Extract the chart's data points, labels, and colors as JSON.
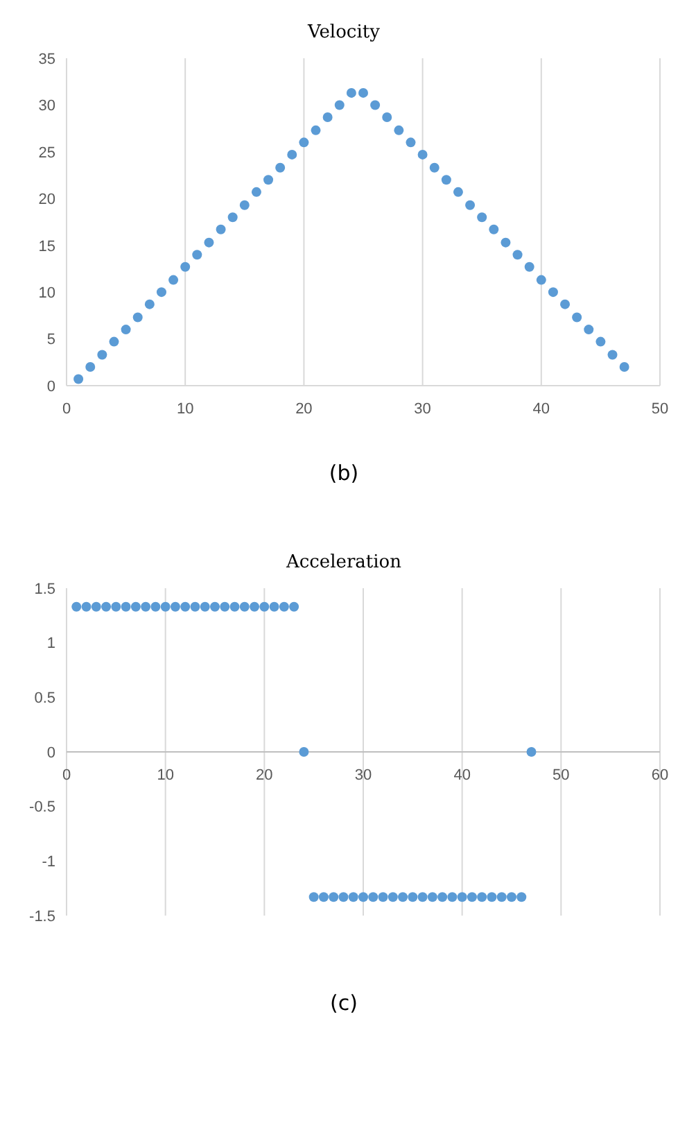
{
  "chart_data": [
    {
      "type": "scatter",
      "title": "Velocity",
      "marker": "circle",
      "grid": "x",
      "annotations": [
        "(b)"
      ],
      "x": [
        1,
        2,
        3,
        4,
        5,
        6,
        7,
        8,
        9,
        10,
        11,
        12,
        13,
        14,
        15,
        16,
        17,
        18,
        19,
        20,
        21,
        22,
        23,
        24,
        25,
        26,
        27,
        28,
        29,
        30,
        31,
        32,
        33,
        34,
        35,
        36,
        37,
        38,
        39,
        40,
        41,
        42,
        43,
        44,
        45,
        46,
        47
      ],
      "series": [
        {
          "color": "#5b9bd5",
          "values": [
            0.7,
            2.0,
            3.3,
            4.7,
            6.0,
            7.3,
            8.7,
            10.0,
            11.3,
            12.7,
            14.0,
            15.3,
            16.7,
            18.0,
            19.3,
            20.7,
            22.0,
            23.3,
            24.7,
            26.0,
            27.3,
            28.7,
            30.0,
            31.3,
            31.3,
            30.0,
            28.7,
            27.3,
            26.0,
            24.7,
            23.3,
            22.0,
            20.7,
            19.3,
            18.0,
            16.7,
            15.3,
            14.0,
            12.7,
            11.3,
            10.0,
            8.7,
            7.3,
            6.0,
            4.7,
            3.3,
            2.0
          ]
        }
      ],
      "xlim": [
        0,
        50
      ],
      "xticks": [
        0,
        10,
        20,
        30,
        40,
        50
      ],
      "ylim": [
        0,
        35
      ],
      "yticks": [
        0,
        5,
        10,
        15,
        20,
        25,
        30,
        35
      ]
    },
    {
      "type": "scatter",
      "title": "Acceleration",
      "marker": "circle",
      "grid": "x",
      "annotations": [
        "(c)"
      ],
      "x": [
        1,
        2,
        3,
        4,
        5,
        6,
        7,
        8,
        9,
        10,
        11,
        12,
        13,
        14,
        15,
        16,
        17,
        18,
        19,
        20,
        21,
        22,
        23,
        24,
        25,
        26,
        27,
        28,
        29,
        30,
        31,
        32,
        33,
        34,
        35,
        36,
        37,
        38,
        39,
        40,
        41,
        42,
        43,
        44,
        45,
        46,
        47
      ],
      "series": [
        {
          "color": "#5b9bd5",
          "values": [
            1.33,
            1.33,
            1.33,
            1.33,
            1.33,
            1.33,
            1.33,
            1.33,
            1.33,
            1.33,
            1.33,
            1.33,
            1.33,
            1.33,
            1.33,
            1.33,
            1.33,
            1.33,
            1.33,
            1.33,
            1.33,
            1.33,
            1.33,
            0,
            -1.33,
            -1.33,
            -1.33,
            -1.33,
            -1.33,
            -1.33,
            -1.33,
            -1.33,
            -1.33,
            -1.33,
            -1.33,
            -1.33,
            -1.33,
            -1.33,
            -1.33,
            -1.33,
            -1.33,
            -1.33,
            -1.33,
            -1.33,
            -1.33,
            -1.33,
            0
          ]
        }
      ],
      "xlim": [
        0,
        60
      ],
      "xticks": [
        0,
        10,
        20,
        30,
        40,
        50,
        60
      ],
      "ylim": [
        -1.5,
        1.5
      ],
      "yticks": [
        -1.5,
        -1,
        -0.5,
        0,
        0.5,
        1,
        1.5
      ]
    }
  ]
}
